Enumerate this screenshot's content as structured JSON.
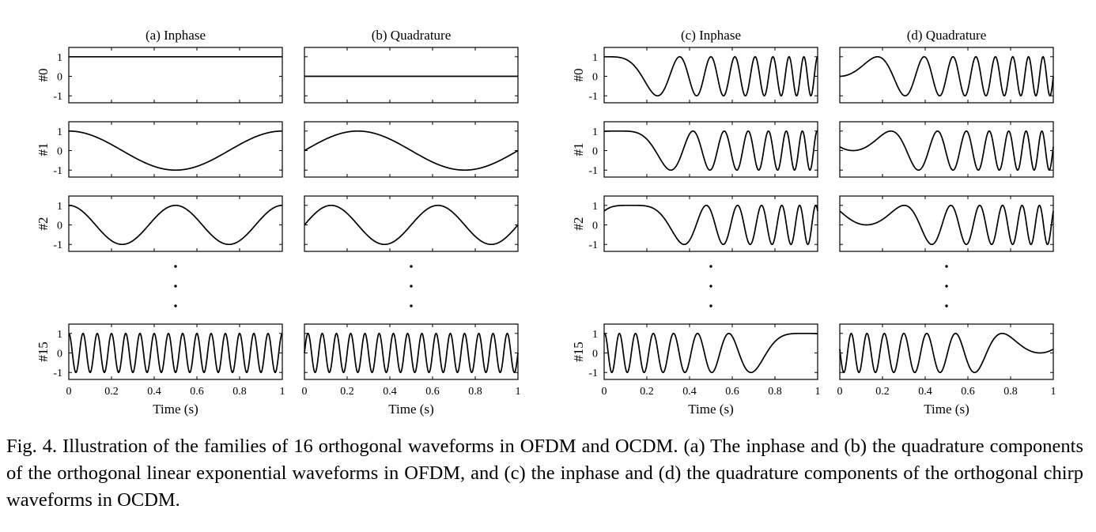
{
  "caption": "Fig. 4.  Illustration of the families of 16 orthogonal waveforms in OFDM and OCDM. (a) The inphase and (b) the quadrature components of the orthogonal linear exponential waveforms in OFDM, and (c) the inphase and (d) the quadrature components of the orthogonal chirp waveforms in OCDM.",
  "chart_data": [
    {
      "type": "line",
      "title": "(a) Inphase",
      "xlabel": "Time (s)",
      "xlim": [
        0,
        1
      ],
      "ylim": [
        -1.5,
        1.5
      ],
      "x_ticks": [
        "0",
        "0.2",
        "0.4",
        "0.6",
        "0.8",
        "1"
      ],
      "y_ticks": [
        "1",
        "0",
        "-1"
      ],
      "row_labels": [
        "#0",
        "#1",
        "#2",
        "#15"
      ],
      "series": [
        {
          "name": "#0",
          "formula": "cos(2*pi*0*t)",
          "index": 0
        },
        {
          "name": "#1",
          "formula": "cos(2*pi*1*t)",
          "index": 1
        },
        {
          "name": "#2",
          "formula": "cos(2*pi*2*t)",
          "index": 2
        },
        {
          "name": "#15",
          "formula": "cos(2*pi*15*t)",
          "index": 15
        }
      ]
    },
    {
      "type": "line",
      "title": "(b) Quadrature",
      "xlabel": "Time (s)",
      "xlim": [
        0,
        1
      ],
      "ylim": [
        -1.5,
        1.5
      ],
      "x_ticks": [
        "0",
        "0.2",
        "0.4",
        "0.6",
        "0.8",
        "1"
      ],
      "row_labels": [
        "#0",
        "#1",
        "#2",
        "#15"
      ],
      "series": [
        {
          "name": "#0",
          "formula": "sin(2*pi*0*t)",
          "index": 0
        },
        {
          "name": "#1",
          "formula": "sin(2*pi*1*t)",
          "index": 1
        },
        {
          "name": "#2",
          "formula": "sin(2*pi*2*t)",
          "index": 2
        },
        {
          "name": "#15",
          "formula": "sin(2*pi*15*t)",
          "index": 15
        }
      ]
    },
    {
      "type": "line",
      "title": "(c) Inphase",
      "xlabel": "Time (s)",
      "xlim": [
        0,
        1
      ],
      "ylim": [
        -1.5,
        1.5
      ],
      "x_ticks": [
        "0",
        "0.2",
        "0.4",
        "0.6",
        "0.8",
        "1"
      ],
      "y_ticks": [
        "1",
        "0",
        "-1"
      ],
      "row_labels": [
        "#0",
        "#1",
        "#2",
        "#15"
      ],
      "series": [
        {
          "name": "#0",
          "formula": "cos(pi*N*(t - k/N)^2), N=16",
          "index": 0
        },
        {
          "name": "#1",
          "formula": "cos(pi*N*(t - k/N)^2), N=16",
          "index": 1
        },
        {
          "name": "#2",
          "formula": "cos(pi*N*(t - k/N)^2), N=16",
          "index": 2
        },
        {
          "name": "#15",
          "formula": "cos(pi*N*(t - k/N)^2), N=16",
          "index": 15
        }
      ]
    },
    {
      "type": "line",
      "title": "(d) Quadrature",
      "xlabel": "Time (s)",
      "xlim": [
        0,
        1
      ],
      "ylim": [
        -1.5,
        1.5
      ],
      "x_ticks": [
        "0",
        "0.2",
        "0.4",
        "0.6",
        "0.8",
        "1"
      ],
      "row_labels": [
        "#0",
        "#1",
        "#2",
        "#15"
      ],
      "series": [
        {
          "name": "#0",
          "formula": "sin(pi*N*(t - k/N)^2), N=16",
          "index": 0
        },
        {
          "name": "#1",
          "formula": "sin(pi*N*(t - k/N)^2), N=16",
          "index": 1
        },
        {
          "name": "#2",
          "formula": "sin(pi*N*(t - k/N)^2), N=16",
          "index": 2
        },
        {
          "name": "#15",
          "formula": "sin(pi*N*(t - k/N)^2), N=16",
          "index": 15
        }
      ]
    }
  ]
}
